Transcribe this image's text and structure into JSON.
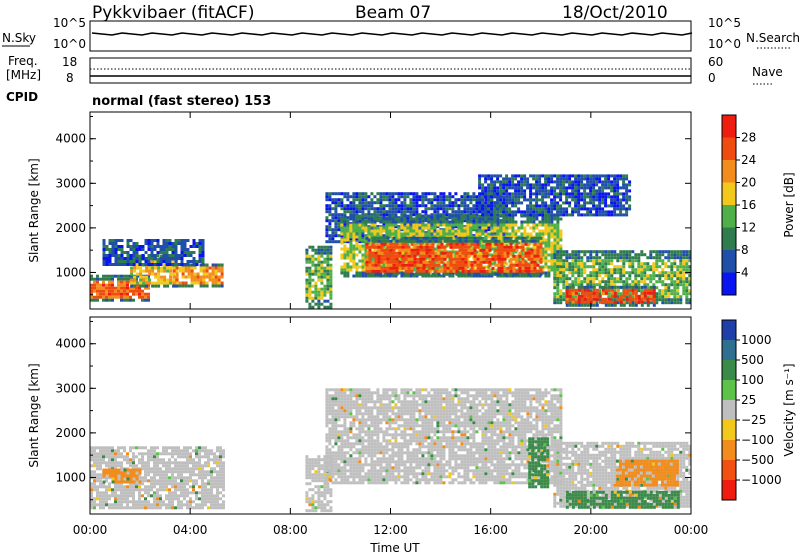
{
  "header": {
    "station": "Pykkvibaer (fitACF)",
    "beam": "Beam 07",
    "date": "18/Oct/2010"
  },
  "strip_panels": {
    "nsky_label": "N.Sky",
    "nsky_ticks": [
      "10^5",
      "10^0"
    ],
    "nsearch_label": "N.Search",
    "nsearch_ticks": [
      "10^5",
      "10^0"
    ],
    "freq_label": "Freq.",
    "freq_unit": "[MHz]",
    "freq_ticks": [
      "18",
      "8"
    ],
    "nave_label": "Nave",
    "nave_ticks": [
      "60",
      "0"
    ],
    "cpid_label": "CPID",
    "cpid_text": "normal (fast stereo) 153"
  },
  "colors": {
    "power_scale": [
      "#0a14f0",
      "#1f4fa8",
      "#2f7d4e",
      "#4fb04a",
      "#f2c81c",
      "#f28c1c",
      "#f04c10",
      "#ee1d10"
    ],
    "velocity_scale": [
      "#1f3fa8",
      "#2f6f8f",
      "#3a8a4a",
      "#5cc24a",
      "#bfbfbf",
      "#f2c81c",
      "#f28c1c",
      "#f25010",
      "#ee1d10"
    ]
  },
  "chart_data": [
    {
      "type": "heatmap",
      "name": "power",
      "xlabel": "",
      "ylabel": "Slant Range [km]",
      "x_ticks": [
        "00:00",
        "04:00",
        "08:00",
        "12:00",
        "16:00",
        "20:00",
        "00:00"
      ],
      "y_ticks": [
        "1000",
        "2000",
        "3000",
        "4000"
      ],
      "xlim_hours": [
        0,
        24
      ],
      "ylim_km": [
        180,
        4600
      ],
      "colorbar_label": "Power [dB]",
      "colorbar_ticks": [
        "28",
        "24",
        "20",
        "16",
        "12",
        "8",
        "4"
      ],
      "regions": [
        {
          "t0": 0.0,
          "t1": 2.3,
          "r0": 380,
          "r1": 950,
          "value": 25
        },
        {
          "t0": 1.6,
          "t1": 3.5,
          "r0": 700,
          "r1": 1400,
          "value": 18
        },
        {
          "t0": 3.3,
          "t1": 5.3,
          "r0": 700,
          "r1": 1200,
          "value": 22
        },
        {
          "t0": 0.5,
          "t1": 4.5,
          "r0": 1200,
          "r1": 1750,
          "value": 6
        },
        {
          "t0": 8.6,
          "t1": 9.6,
          "r0": 250,
          "r1": 1600,
          "value": 14
        },
        {
          "t0": 9.4,
          "t1": 16.5,
          "r0": 1700,
          "r1": 2800,
          "value": 6
        },
        {
          "t0": 10.0,
          "t1": 18.8,
          "r0": 900,
          "r1": 2300,
          "value": 16
        },
        {
          "t0": 11.0,
          "t1": 18.0,
          "r0": 950,
          "r1": 1800,
          "value": 26
        },
        {
          "t0": 15.5,
          "t1": 21.5,
          "r0": 2300,
          "r1": 3200,
          "value": 6
        },
        {
          "t0": 18.5,
          "t1": 24.0,
          "r0": 300,
          "r1": 1500,
          "value": 14
        },
        {
          "t0": 19.0,
          "t1": 22.5,
          "r0": 280,
          "r1": 700,
          "value": 27
        }
      ]
    },
    {
      "type": "heatmap",
      "name": "velocity",
      "xlabel": "Time UT",
      "ylabel": "Slant Range [km]",
      "x_ticks": [
        "00:00",
        "04:00",
        "08:00",
        "12:00",
        "16:00",
        "20:00",
        "00:00"
      ],
      "y_ticks": [
        "1000",
        "2000",
        "3000",
        "4000"
      ],
      "xlim_hours": [
        0,
        24
      ],
      "ylim_km": [
        180,
        4600
      ],
      "colorbar_label": "Velocity [m s⁻¹]",
      "colorbar_ticks": [
        "1000",
        "500",
        "100",
        "25",
        "−25",
        "−100",
        "−500",
        "−1000"
      ],
      "regions": [
        {
          "t0": 0.0,
          "t1": 5.3,
          "r0": 350,
          "r1": 1700,
          "value": 0
        },
        {
          "t0": 0.5,
          "t1": 2.0,
          "r0": 900,
          "r1": 1200,
          "value": -300
        },
        {
          "t0": 8.6,
          "t1": 9.6,
          "r0": 250,
          "r1": 1500,
          "value": 0
        },
        {
          "t0": 9.4,
          "t1": 18.8,
          "r0": 900,
          "r1": 3000,
          "value": 0
        },
        {
          "t0": 17.5,
          "t1": 18.3,
          "r0": 800,
          "r1": 1900,
          "value": 300
        },
        {
          "t0": 18.5,
          "t1": 24.0,
          "r0": 350,
          "r1": 1800,
          "value": 0
        },
        {
          "t0": 19.0,
          "t1": 23.5,
          "r0": 350,
          "r1": 700,
          "value": 150
        },
        {
          "t0": 21.0,
          "t1": 23.5,
          "r0": 800,
          "r1": 1400,
          "value": -300
        }
      ]
    }
  ]
}
